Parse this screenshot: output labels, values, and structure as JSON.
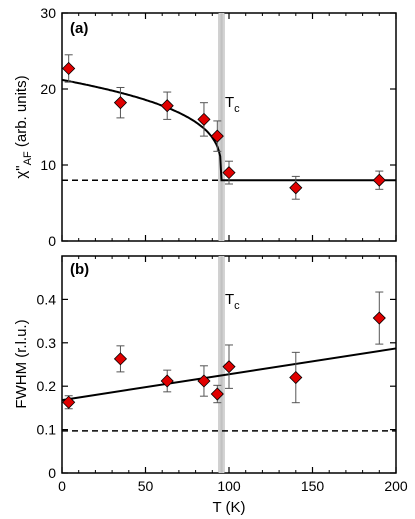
{
  "chart_data": [
    {
      "type": "scatter",
      "panel_label": "(a)",
      "ylabel_main": "χ\"",
      "ylabel_sub": "AF",
      "ylabel_tail": " (arb. units)",
      "xlim": [
        0,
        200
      ],
      "ylim": [
        0,
        30
      ],
      "yticks": [
        0,
        10,
        20,
        30
      ],
      "tc_label": "T",
      "tc_sub": "c",
      "tc_x": 95.5,
      "series": [
        {
          "points": [
            {
              "x": 4,
              "y": 22.7,
              "err": 1.8
            },
            {
              "x": 35,
              "y": 18.2,
              "err": 2.0
            },
            {
              "x": 63,
              "y": 17.8,
              "err": 1.8
            },
            {
              "x": 85,
              "y": 16.0,
              "err": 2.2
            },
            {
              "x": 93,
              "y": 13.8,
              "err": 2.0
            },
            {
              "x": 100,
              "y": 9.0,
              "err": 1.5
            },
            {
              "x": 140,
              "y": 7.0,
              "err": 1.5
            },
            {
              "x": 190,
              "y": 8.0,
              "err": 1.2
            }
          ]
        }
      ],
      "fit_curve": {
        "A0": 21.2,
        "B": 13.2,
        "tc": 95.5,
        "baseline": 8.0,
        "y_at_tc": 8.0
      },
      "dashed_line_y": 8.0
    },
    {
      "type": "scatter",
      "panel_label": "(b)",
      "ylabel": "FWHM (r.l.u.)",
      "xlabel": "T (K)",
      "xlim": [
        0,
        200
      ],
      "ylim": [
        0,
        0.5
      ],
      "xticks": [
        0,
        50,
        100,
        150,
        200
      ],
      "yticks": [
        0,
        0.1,
        0.2,
        0.3,
        0.4
      ],
      "tc_label": "T",
      "tc_sub": "c",
      "tc_x": 95.5,
      "series": [
        {
          "points": [
            {
              "x": 4,
              "y": 0.163,
              "err": 0.015
            },
            {
              "x": 35,
              "y": 0.263,
              "err": 0.03
            },
            {
              "x": 63,
              "y": 0.212,
              "err": 0.025
            },
            {
              "x": 85,
              "y": 0.212,
              "err": 0.035
            },
            {
              "x": 93,
              "y": 0.182,
              "err": 0.02
            },
            {
              "x": 100,
              "y": 0.245,
              "err": 0.05
            },
            {
              "x": 140,
              "y": 0.22,
              "err": 0.058
            },
            {
              "x": 190,
              "y": 0.357,
              "err": 0.06
            }
          ]
        }
      ],
      "fit_line": {
        "x": [
          0,
          200
        ],
        "y": [
          0.168,
          0.287
        ]
      },
      "dashed_line_y": 0.097
    }
  ],
  "style": {
    "marker_fill": "#e00000",
    "marker_stroke": "#000000",
    "tc_band": "#aaaaaa"
  }
}
